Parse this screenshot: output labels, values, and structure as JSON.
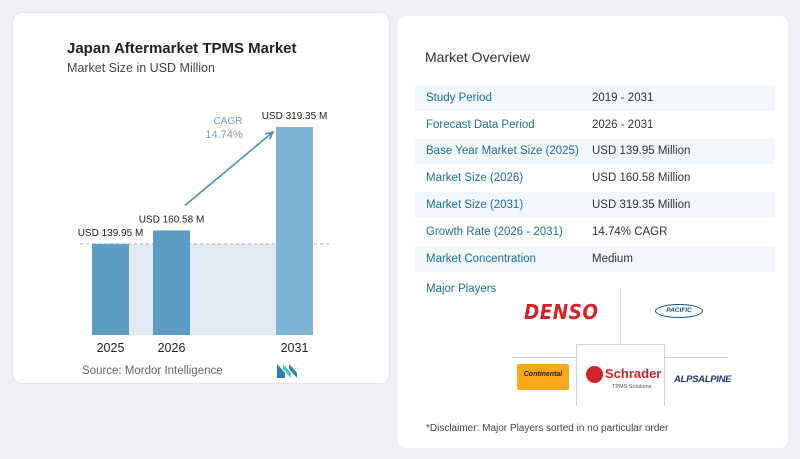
{
  "chart": {
    "title": "Japan Aftermarket TPMS Market",
    "subtitle": "Market Size in USD Million",
    "source": "Source:  Mordor Intelligence",
    "cagr_label": "CAGR",
    "cagr_value": "14.74%"
  },
  "chart_data": {
    "type": "bar",
    "title": "Japan Aftermarket TPMS Market",
    "subtitle": "Market Size in USD Million",
    "categories": [
      "2025",
      "2026",
      "2031"
    ],
    "values": [
      139.95,
      160.58,
      319.35
    ],
    "data_labels": [
      "USD 139.95 M",
      "USD 160.58 M",
      "USD 319.35 M"
    ],
    "annotation": {
      "label": "CAGR",
      "value": "14.74%"
    },
    "xlabel": "",
    "ylabel": "",
    "grid": false,
    "colors": {
      "bar": "#5d9dc4",
      "bar_light": "#7fb5d4",
      "band": "#e2ebf3",
      "arrow": "#4a8fbe"
    }
  },
  "overview": {
    "title": "Market Overview",
    "rows": [
      {
        "key": "Study Period",
        "value": "2019 - 2031"
      },
      {
        "key": "Forecast Data Period",
        "value": "2026 - 2031"
      },
      {
        "key": "Base Year Market Size (2025)",
        "value": "USD 139.95 Million"
      },
      {
        "key": "Market Size (2026)",
        "value": "USD 160.58 Million"
      },
      {
        "key": "Market Size (2031)",
        "value": "USD 319.35 Million"
      },
      {
        "key": "Growth Rate (2026 - 2031)",
        "value": "14.74% CAGR"
      },
      {
        "key": "Market Concentration",
        "value": "Medium"
      }
    ]
  },
  "players": {
    "title": "Major Players",
    "denso": "DENSO",
    "pacific": "PACIFIC",
    "continental": "Continental",
    "schrader": "Schrader",
    "schrader_sub": "TPMS Solutions",
    "alps": "ALPSALPINE"
  },
  "disclaimer": "*Disclaimer: Major Players sorted in no particular order"
}
